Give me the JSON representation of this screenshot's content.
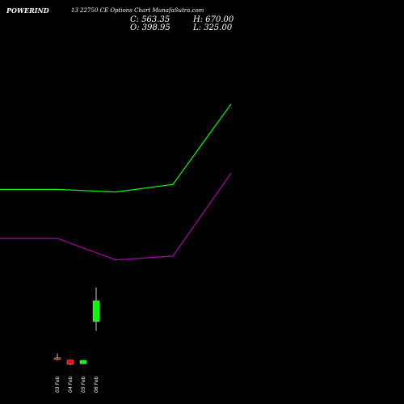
{
  "header": {
    "symbol": "POWERIND",
    "subtitle": "13 22750 CE Options Chart MunafaSutra.com",
    "close": "C: 563.35",
    "high": "H: 670.00",
    "open": "O: 398.95",
    "low": "L: 325.00"
  },
  "chart_data": {
    "type": "candlestick",
    "categories": [
      "03 Feb",
      "04 Feb",
      "05 Feb",
      "06 Feb"
    ],
    "candles": [
      {
        "open": 110,
        "high": 145,
        "low": 90,
        "close": 98
      },
      {
        "open": 92,
        "high": 96,
        "low": 52,
        "close": 60
      },
      {
        "open": 63,
        "high": 92,
        "low": 62,
        "close": 90
      },
      {
        "open": 398.95,
        "high": 670.0,
        "low": 325.0,
        "close": 563.35
      }
    ],
    "band_upper": [
      1450,
      1450,
      1430,
      1490,
      2130
    ],
    "band_lower": [
      1060,
      1060,
      890,
      920,
      1580
    ],
    "ylim": [
      0,
      2700
    ],
    "colors": {
      "up": "#00ff00",
      "down": "#ff0000",
      "upper": "#00ff00",
      "lower": "#b000b0",
      "wick": "#ffffff"
    }
  }
}
